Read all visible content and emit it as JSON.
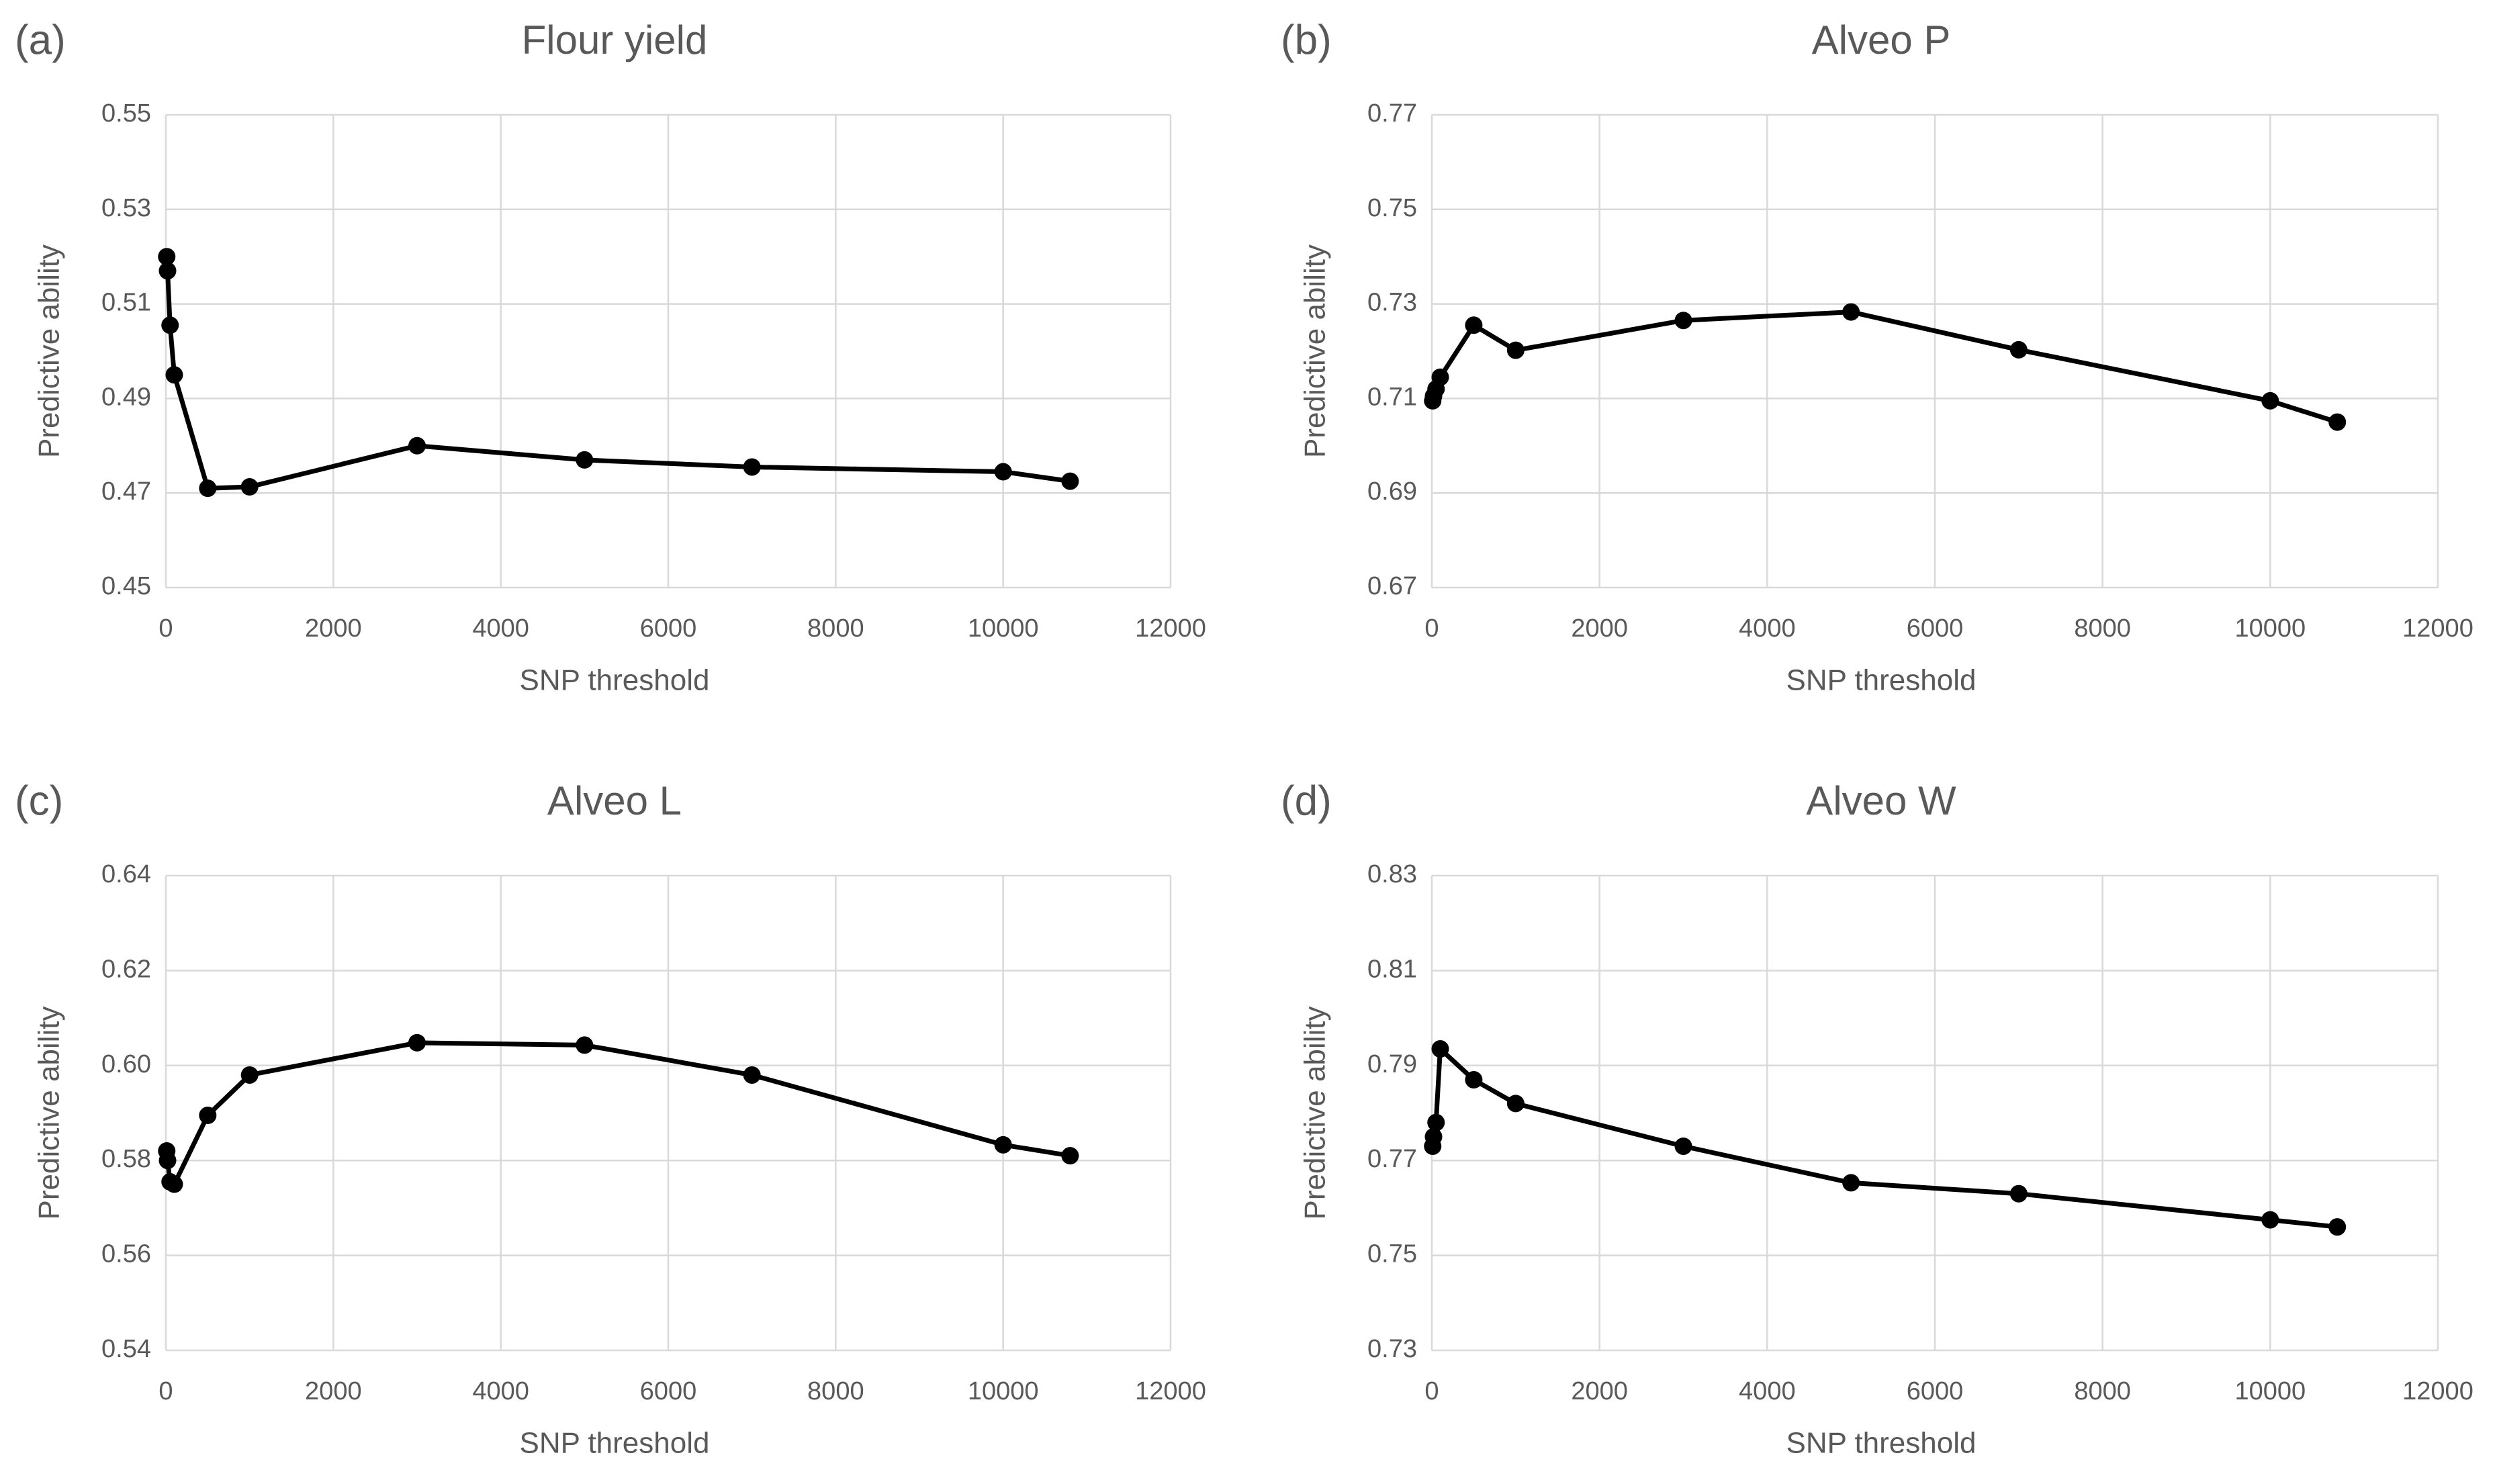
{
  "chart_data": [
    {
      "type": "line",
      "panel_label": "(a)",
      "title": "Flour yield",
      "x_label": "SNP threshold",
      "y_label": "Predictive ability",
      "x": [
        10,
        20,
        50,
        100,
        500,
        1000,
        3000,
        5000,
        7000,
        10000,
        10800
      ],
      "values": [
        0.52,
        0.517,
        0.5055,
        0.495,
        0.471,
        0.4713,
        0.48,
        0.477,
        0.4755,
        0.4745,
        0.4725
      ],
      "color": "#000000",
      "xlim": [
        0,
        12000
      ],
      "xticks": [
        0,
        2000,
        4000,
        6000,
        8000,
        10000,
        12000
      ],
      "ylim": [
        0.45,
        0.55
      ],
      "yticks": [
        0.45,
        0.47,
        0.49,
        0.51,
        0.53,
        0.55
      ],
      "grid": true
    },
    {
      "type": "line",
      "panel_label": "(b)",
      "title": "Alveo P",
      "x_label": "SNP threshold",
      "y_label": "Predictive ability",
      "x": [
        10,
        20,
        50,
        100,
        500,
        1000,
        3000,
        5000,
        7000,
        10000,
        10800
      ],
      "values": [
        0.7095,
        0.7105,
        0.712,
        0.7145,
        0.7255,
        0.7202,
        0.7265,
        0.7283,
        0.7203,
        0.7095,
        0.705
      ],
      "color": "#000000",
      "xlim": [
        0,
        12000
      ],
      "xticks": [
        0,
        2000,
        4000,
        6000,
        8000,
        10000,
        12000
      ],
      "ylim": [
        0.67,
        0.77
      ],
      "yticks": [
        0.67,
        0.69,
        0.71,
        0.73,
        0.75,
        0.77
      ],
      "grid": true
    },
    {
      "type": "line",
      "panel_label": "(c)",
      "title": "Alveo L",
      "x_label": "SNP threshold",
      "y_label": "Predictive ability",
      "x": [
        10,
        20,
        50,
        100,
        500,
        1000,
        3000,
        5000,
        7000,
        10000,
        10800
      ],
      "values": [
        0.582,
        0.58,
        0.5755,
        0.575,
        0.5895,
        0.598,
        0.6048,
        0.6043,
        0.598,
        0.5833,
        0.581
      ],
      "color": "#000000",
      "xlim": [
        0,
        12000
      ],
      "xticks": [
        0,
        2000,
        4000,
        6000,
        8000,
        10000,
        12000
      ],
      "ylim": [
        0.54,
        0.64
      ],
      "yticks": [
        0.54,
        0.56,
        0.58,
        {
          "value": 0.6,
          "label": "0.60"
        },
        0.62,
        0.64
      ],
      "grid": true
    },
    {
      "type": "line",
      "panel_label": "(d)",
      "title": "Alveo W",
      "x_label": "SNP threshold",
      "y_label": "Predictive ability",
      "x": [
        10,
        20,
        50,
        100,
        500,
        1000,
        3000,
        5000,
        7000,
        10000,
        10800
      ],
      "values": [
        0.773,
        0.775,
        0.778,
        0.7935,
        0.787,
        0.782,
        0.773,
        0.7653,
        0.763,
        0.7575,
        0.756
      ],
      "color": "#000000",
      "xlim": [
        0,
        12000
      ],
      "xticks": [
        0,
        2000,
        4000,
        6000,
        8000,
        10000,
        12000
      ],
      "ylim": [
        0.73,
        0.83
      ],
      "yticks": [
        0.73,
        0.75,
        0.77,
        0.79,
        0.81,
        0.83
      ],
      "grid": true
    }
  ]
}
